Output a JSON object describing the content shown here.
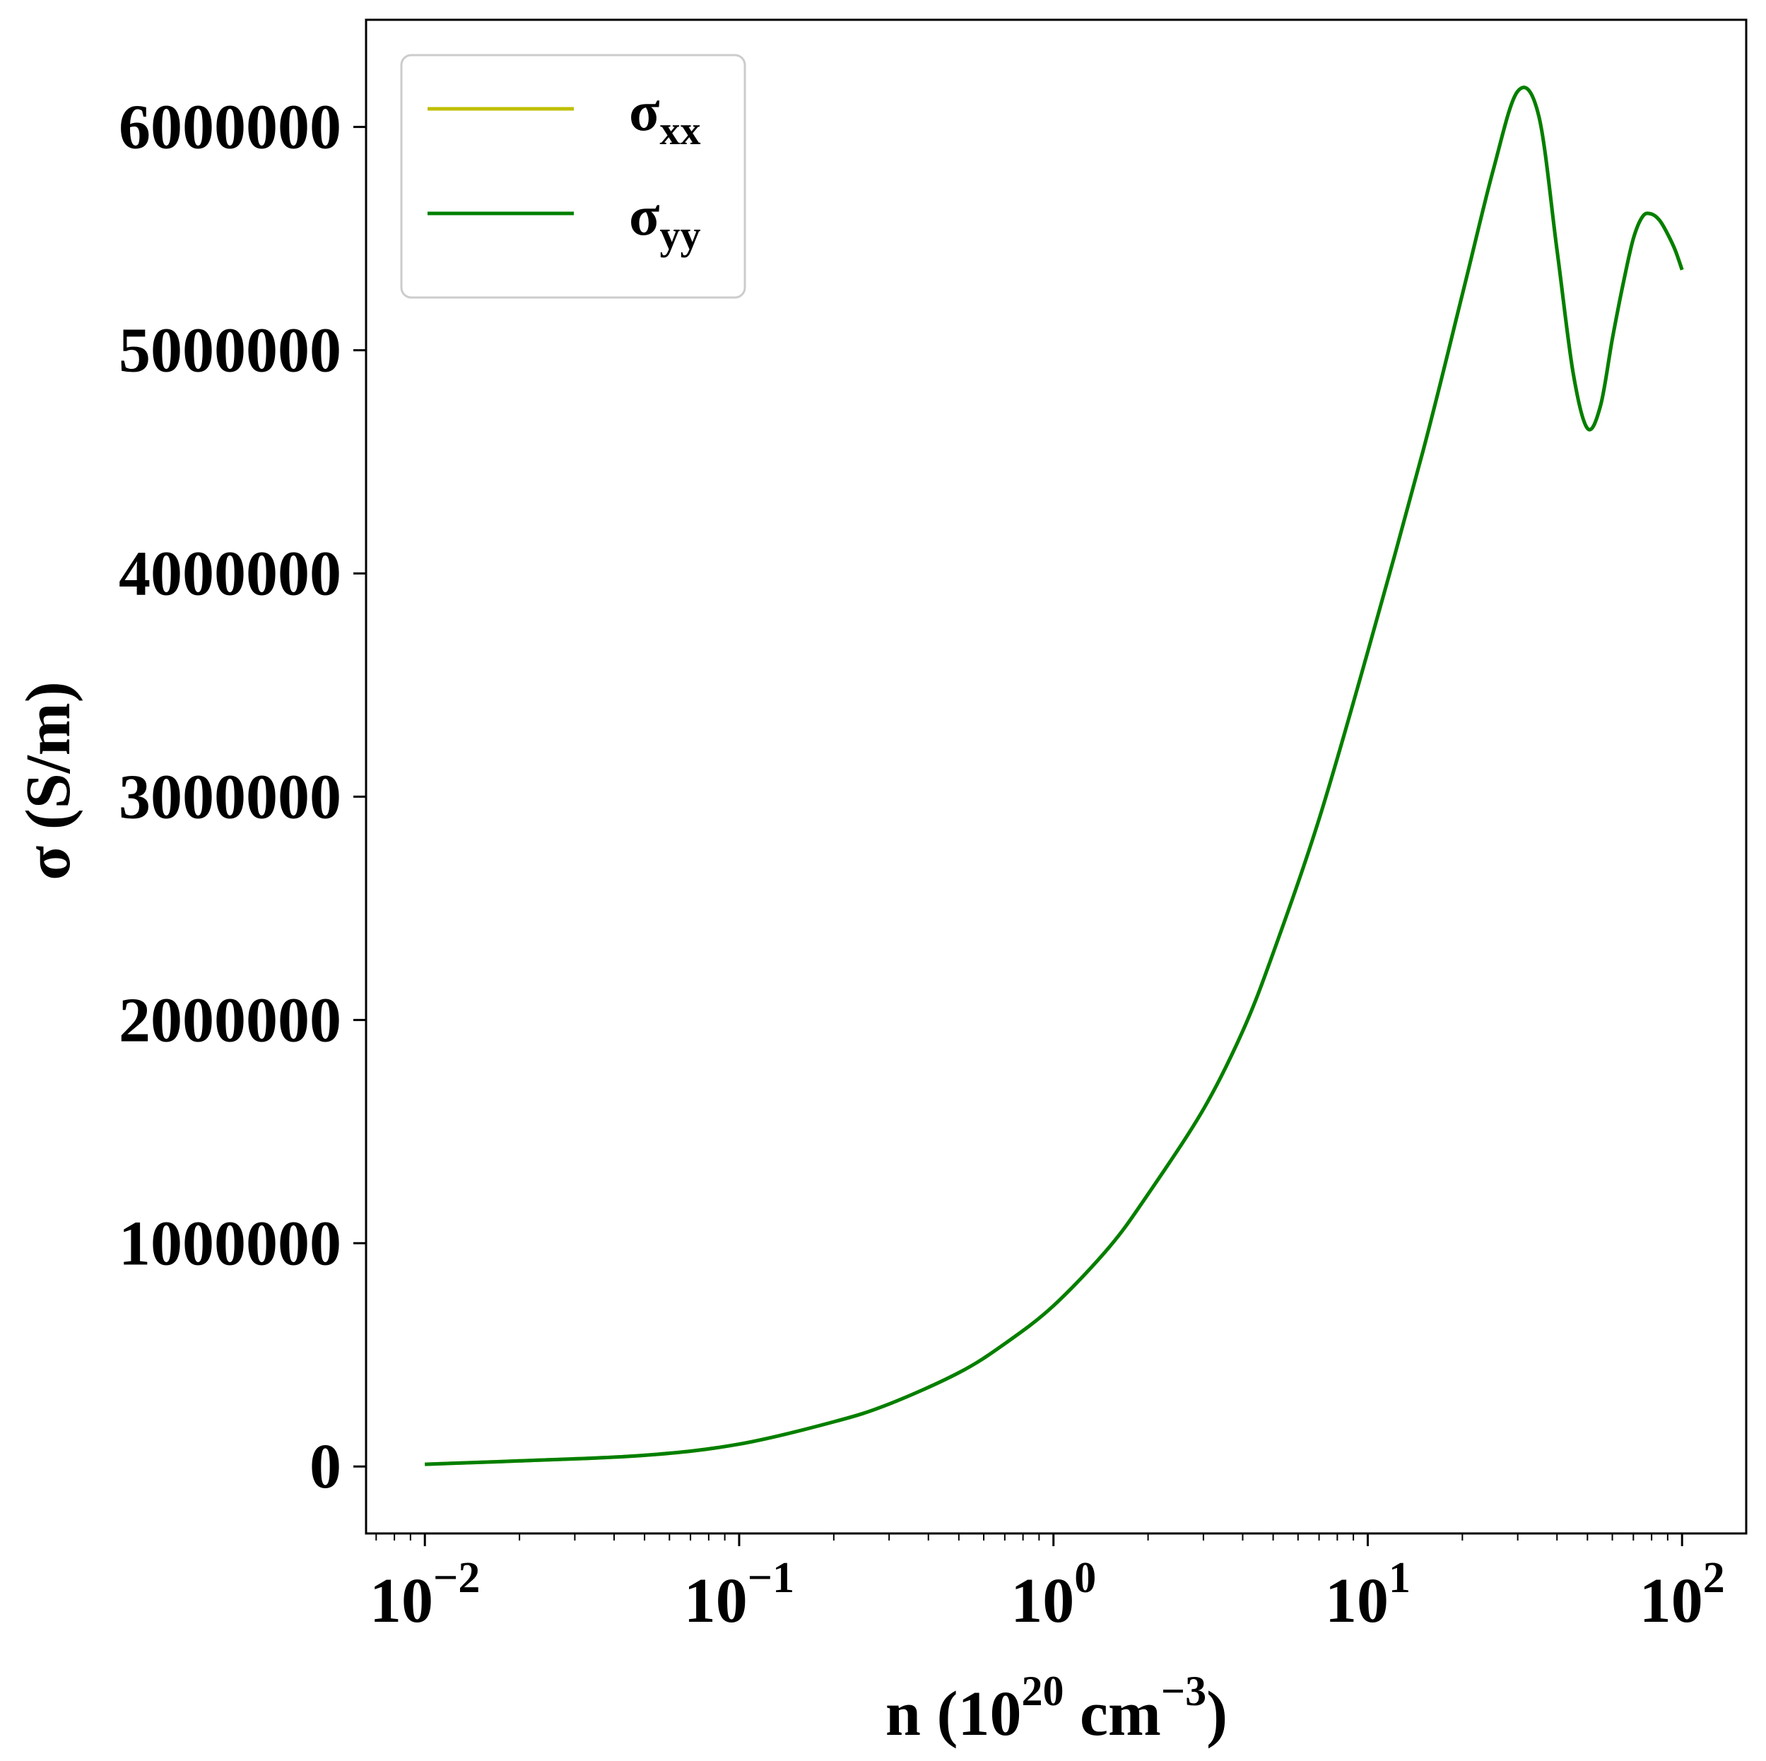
{
  "chart_data": {
    "type": "line",
    "title": "",
    "xlabel": {
      "base": "n (10",
      "exp1": "20",
      "mid": " cm",
      "exp2": "−3",
      "end": ")"
    },
    "ylabel": "σ (S/m)",
    "xscale": "log",
    "xlim": [
      0.0065,
      160
    ],
    "ylim": [
      -300000,
      6480000
    ],
    "xticks": [
      {
        "base": "10",
        "exp": "−2",
        "value": 0.01
      },
      {
        "base": "10",
        "exp": "−1",
        "value": 0.1
      },
      {
        "base": "10",
        "exp": "0",
        "value": 1
      },
      {
        "base": "10",
        "exp": "1",
        "value": 10
      },
      {
        "base": "10",
        "exp": "2",
        "value": 100
      }
    ],
    "yticks": [
      0,
      1000000,
      2000000,
      3000000,
      4000000,
      5000000,
      6000000
    ],
    "grid": false,
    "legend_position": "top-left",
    "series": [
      {
        "name": "σxx",
        "label_main": "σ",
        "label_sub": "xx",
        "color": "#bfbf00",
        "x": [
          0.01,
          0.02,
          0.05,
          0.1,
          0.2,
          0.3,
          0.5,
          0.7,
          1,
          1.5,
          2,
          3,
          4,
          5,
          7,
          10,
          15,
          20,
          25,
          30,
          35,
          40,
          45,
          50,
          55,
          60,
          65,
          70,
          75,
          80,
          85,
          90,
          95,
          100
        ],
        "y": [
          10000,
          25000,
          50000,
          100000,
          200000,
          280000,
          420000,
          550000,
          720000,
          980000,
          1220000,
          1600000,
          1950000,
          2300000,
          2900000,
          3650000,
          4550000,
          5250000,
          5800000,
          6160000,
          6050000,
          5450000,
          4900000,
          4650000,
          4750000,
          5050000,
          5300000,
          5500000,
          5600000,
          5610000,
          5580000,
          5520000,
          5450000,
          5360000
        ]
      },
      {
        "name": "σyy",
        "label_main": "σ",
        "label_sub": "yy",
        "color": "#007f00",
        "x": [
          0.01,
          0.02,
          0.05,
          0.1,
          0.2,
          0.3,
          0.5,
          0.7,
          1,
          1.5,
          2,
          3,
          4,
          5,
          7,
          10,
          15,
          20,
          25,
          30,
          35,
          40,
          45,
          50,
          55,
          60,
          65,
          70,
          75,
          80,
          85,
          90,
          95,
          100
        ],
        "y": [
          10000,
          25000,
          50000,
          100000,
          200000,
          280000,
          420000,
          550000,
          720000,
          980000,
          1220000,
          1600000,
          1950000,
          2300000,
          2900000,
          3650000,
          4550000,
          5250000,
          5800000,
          6160000,
          6050000,
          5450000,
          4900000,
          4650000,
          4750000,
          5050000,
          5300000,
          5500000,
          5600000,
          5610000,
          5580000,
          5520000,
          5450000,
          5360000
        ]
      }
    ]
  }
}
